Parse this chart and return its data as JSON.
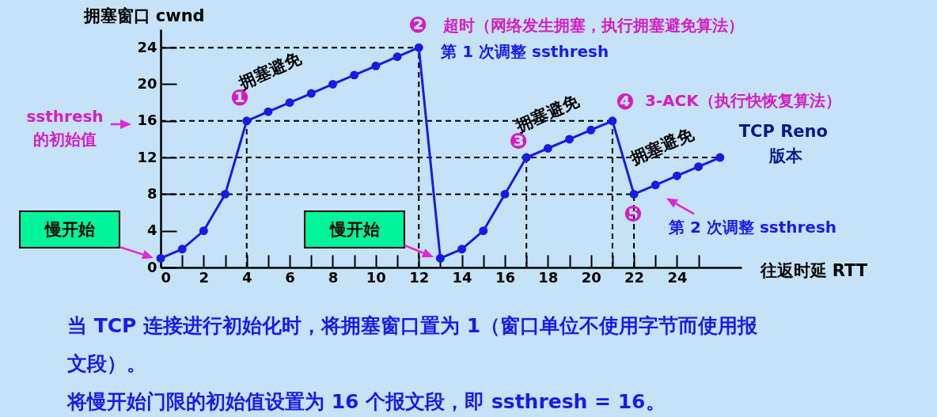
{
  "chart_data": {
    "type": "line",
    "xlabel": "往返时延 RTT",
    "ylabel": "拥塞窗口 cwnd",
    "x": [
      0,
      1,
      2,
      3,
      4,
      5,
      6,
      7,
      8,
      9,
      10,
      11,
      12,
      13,
      14,
      15,
      16,
      17,
      18,
      19,
      20,
      21,
      22,
      23,
      24,
      25,
      26
    ],
    "series": [
      {
        "color": "#1a1ae6",
        "values": [
          1,
          2,
          4,
          8,
          16,
          17,
          18,
          19,
          20,
          21,
          22,
          23,
          24,
          1,
          2,
          4,
          8,
          12,
          13,
          14,
          15,
          16,
          8,
          9,
          10,
          11,
          12
        ]
      }
    ],
    "xlim": [
      0,
      27
    ],
    "ylim": [
      0,
      26
    ],
    "xticks": [
      0,
      {
        "value": 1,
        "label": null
      },
      2,
      {
        "value": 3,
        "label": null
      },
      4,
      {
        "value": 5,
        "label": null
      },
      6,
      {
        "value": 7,
        "label": null
      },
      8,
      {
        "value": 9,
        "label": null
      },
      10,
      {
        "value": 11,
        "label": null
      },
      12,
      {
        "value": 13,
        "label": null
      },
      14,
      {
        "value": 15,
        "label": null
      },
      16,
      {
        "value": 17,
        "label": null
      },
      18,
      {
        "value": 19,
        "label": null
      },
      20,
      {
        "value": 21,
        "label": null
      },
      22,
      {
        "value": 23,
        "label": null
      },
      24,
      {
        "value": 25,
        "label": null
      }
    ],
    "yticks": [
      0,
      4,
      8,
      12,
      16,
      20,
      24
    ],
    "grid": false,
    "marker": "circle",
    "line_style": "solid",
    "ref_lines": [
      {
        "axis": "y",
        "value": 24,
        "line_style": "dashed"
      },
      {
        "axis": "y",
        "value": 16,
        "line_style": "dashed"
      },
      {
        "axis": "y",
        "value": 12,
        "line_style": "dashed"
      },
      {
        "axis": "y",
        "value": 8,
        "line_style": "dashed"
      },
      {
        "axis": "x",
        "value": 4,
        "line_style": "dashed"
      },
      {
        "axis": "x",
        "value": 12,
        "line_style": "dashed"
      },
      {
        "axis": "x",
        "value": 17,
        "line_style": "dashed"
      },
      {
        "axis": "x",
        "value": 21,
        "line_style": "dashed"
      },
      {
        "axis": "x",
        "value": 22,
        "line_style": "dashed"
      }
    ],
    "annotations": [
      {
        "text": "❶",
        "x": 4,
        "y": 16
      },
      {
        "text": "拥塞避免",
        "x": 4,
        "y": 16
      },
      {
        "text": "❷",
        "x": 12,
        "y": 24
      },
      {
        "text": "超时（网络发生拥塞，执行拥塞避免算法）",
        "x": 12,
        "y": 24
      },
      {
        "text": "第 1 次调整 ssthresh",
        "x": 12,
        "y": 24
      },
      "ssthresh 的初始值",
      "慢开始",
      "慢开始",
      {
        "text": "❸",
        "x": 17,
        "y": 12
      },
      {
        "text": "拥塞避免",
        "x": 17,
        "y": 12
      },
      {
        "text": "❹",
        "x": 21,
        "y": 16
      },
      {
        "text": "3-ACK（执行快恢复算法）",
        "x": 21,
        "y": 16
      },
      {
        "text": "❺",
        "x": 22,
        "y": 8
      },
      {
        "text": "拥塞避免",
        "x": 22,
        "y": 8
      },
      {
        "text": "第 2 次调整 ssthresh",
        "x": 22,
        "y": 8
      },
      {
        "text": "TCP Reno",
        "x": 26,
        "y": 12
      },
      {
        "text": "版本",
        "x": 26,
        "y": 12
      },
      "当 TCP 连接进行初始化时，将拥塞窗口置为 1（窗口单位不使用字节而使用报文段）。",
      "将慢开始门限的初始值设置为 16 个报文段，即 ssthresh = 16。"
    ]
  }
}
